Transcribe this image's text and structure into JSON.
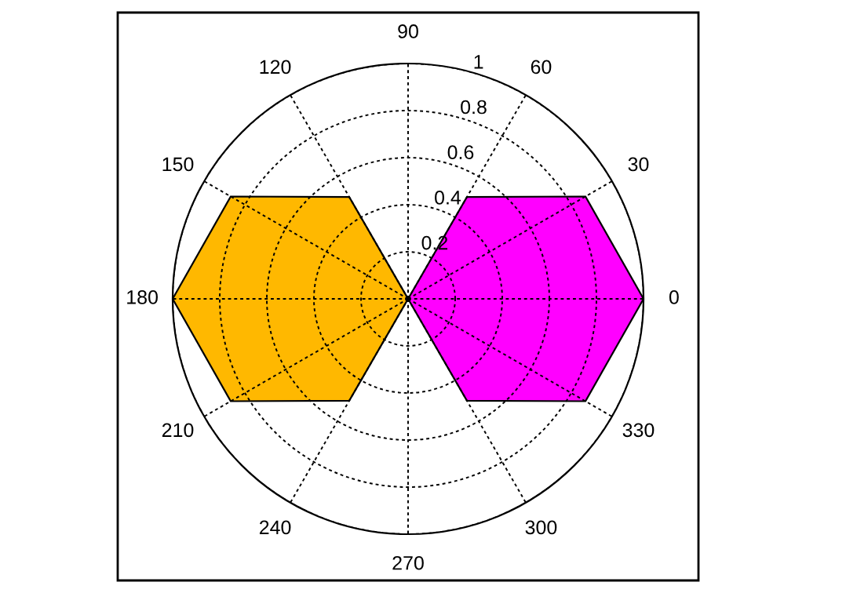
{
  "chart_data": {
    "type": "radar",
    "categories": [
      "90",
      "60",
      "30",
      "0",
      "330",
      "300",
      "270",
      "240",
      "210",
      "180",
      "150",
      "120"
    ],
    "ylim": [
      0,
      1
    ],
    "yticks": [
      0.2,
      0.4,
      0.6,
      0.8,
      1
    ],
    "grid": true,
    "series": [
      {
        "type": "area",
        "color": "#ff00ff",
        "values": [
          0,
          0.5,
          0.87,
          1,
          0.87,
          0.5,
          0,
          0,
          0,
          0,
          0,
          0
        ]
      },
      {
        "type": "area",
        "color": "#ffb800",
        "values": [
          0,
          0,
          0,
          0,
          0,
          0,
          0,
          0.5,
          0.87,
          1,
          0.87,
          0.5
        ]
      }
    ]
  }
}
